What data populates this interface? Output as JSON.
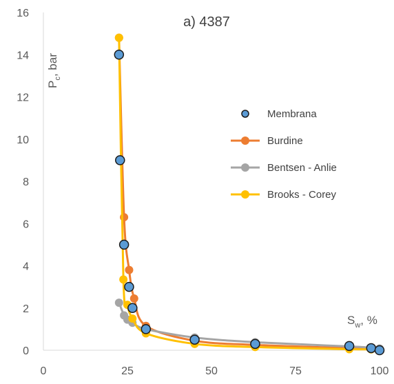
{
  "chart_data": {
    "type": "scatter",
    "title": "a) 4387",
    "ylabel": {
      "main": "P",
      "sub": "c",
      "rest": ", bar"
    },
    "xlabel": {
      "main": "S",
      "sub": "w",
      "rest": ", %"
    },
    "xlim": [
      0,
      100
    ],
    "ylim": [
      0,
      16
    ],
    "xticks": [
      "0",
      "25",
      "50",
      "75",
      "100"
    ],
    "yticks": [
      "0",
      "2",
      "4",
      "6",
      "8",
      "10",
      "12",
      "14",
      "16"
    ],
    "grid": false,
    "legend_position": "right",
    "series": [
      {
        "name": "Membrana",
        "style": "markers",
        "color": "#5B9BD5",
        "edge": "#1a1a1a",
        "x": [
          22.5,
          22.8,
          24,
          25.5,
          26.5,
          30.5,
          45,
          63,
          91,
          97.5,
          100
        ],
        "y": [
          14,
          9,
          5,
          3,
          2,
          1,
          0.5,
          0.3,
          0.2,
          0.1,
          0
        ]
      },
      {
        "name": "Burdine",
        "style": "line-markers",
        "color": "#ED7D31",
        "x": [
          22.5,
          24,
          25.5,
          27,
          30.5,
          45,
          63,
          91,
          97.5,
          100
        ],
        "y": [
          14.8,
          6.3,
          3.8,
          2.45,
          1.15,
          0.45,
          0.25,
          0.1,
          0.08,
          0.05
        ]
      },
      {
        "name": "Bentsen - Anlie",
        "style": "line-markers",
        "color": "#A5A5A5",
        "x": [
          22.5,
          24,
          25,
          26.5,
          30.5,
          45,
          63,
          91,
          97.5,
          100
        ],
        "y": [
          2.25,
          1.65,
          1.45,
          1.3,
          1.0,
          0.6,
          0.38,
          0.18,
          0.12,
          0.08
        ]
      },
      {
        "name": "Brooks - Corey",
        "style": "line-markers",
        "color": "#FFC000",
        "x": [
          22.5,
          23.8,
          25,
          26.5,
          30.5,
          45,
          63,
          91,
          97.5,
          100
        ],
        "y": [
          14.8,
          3.35,
          2.15,
          1.5,
          0.8,
          0.3,
          0.15,
          0.05,
          0.04,
          0.02
        ]
      }
    ]
  }
}
